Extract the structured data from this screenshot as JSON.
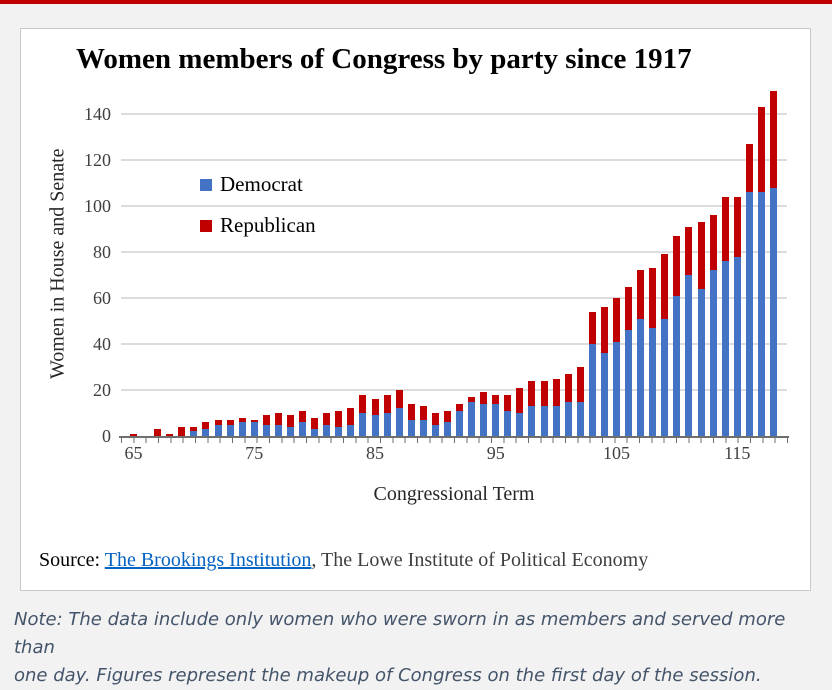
{
  "page": {
    "background": "#F2F2F2",
    "top_strip_color": "#C00000"
  },
  "card": {
    "title": "Women members of Congress by party since 1917",
    "source": {
      "prefix": "Source: ",
      "link_text": "The Brookings Institution",
      "suffix": ", The Lowe Institute of Political Economy"
    }
  },
  "note": {
    "lines": [
      "Note: The data include only women who were sworn in as members and served more than",
      "one day. Figures represent the makeup of Congress on the first day of the session."
    ]
  },
  "chart_data": {
    "type": "bar",
    "stacked": true,
    "title": "Women members of Congress by party since 1917",
    "xlabel": "Congressional Term",
    "ylabel": "Women in House and Senate",
    "ylim": [
      0,
      150
    ],
    "yticks": [
      0,
      20,
      40,
      60,
      80,
      100,
      120,
      140
    ],
    "xticks": [
      65,
      75,
      85,
      95,
      105,
      115
    ],
    "grid": "horizontal",
    "legend_position": "upper-left-inside",
    "colors": {
      "democrat": "#4472C4",
      "republican": "#C00000",
      "gridline": "#DCDCDC",
      "axis": "#6E6E6E",
      "tick_label": "#404040"
    },
    "categories": [
      65,
      66,
      67,
      68,
      69,
      70,
      71,
      72,
      73,
      74,
      75,
      76,
      77,
      78,
      79,
      80,
      81,
      82,
      83,
      84,
      85,
      86,
      87,
      88,
      89,
      90,
      91,
      92,
      93,
      94,
      95,
      96,
      97,
      98,
      99,
      100,
      101,
      102,
      103,
      104,
      105,
      106,
      107,
      108,
      109,
      110,
      111,
      112,
      113,
      114,
      115,
      116,
      117,
      118
    ],
    "series": [
      {
        "name": "Democrat",
        "color": "#4472C4",
        "values": [
          0,
          0,
          0,
          0,
          0,
          2,
          3,
          5,
          5,
          6,
          6,
          5,
          5,
          4,
          6,
          3,
          5,
          4,
          5,
          10,
          9,
          10,
          12,
          7,
          7,
          5,
          6,
          11,
          15,
          14,
          14,
          11,
          10,
          13,
          13,
          13,
          15,
          15,
          40,
          36,
          41,
          46,
          51,
          47,
          51,
          61,
          70,
          64,
          72,
          76,
          78,
          106,
          106,
          108
        ]
      },
      {
        "name": "Republican",
        "color": "#C00000",
        "values": [
          1,
          0,
          3,
          1,
          4,
          2,
          3,
          2,
          2,
          2,
          1,
          4,
          5,
          5,
          5,
          5,
          5,
          7,
          7,
          8,
          7,
          8,
          8,
          7,
          6,
          5,
          5,
          3,
          2,
          5,
          4,
          7,
          11,
          11,
          11,
          12,
          12,
          15,
          14,
          20,
          19,
          19,
          21,
          26,
          28,
          26,
          21,
          29,
          24,
          28,
          26,
          21,
          37,
          42
        ]
      }
    ]
  }
}
